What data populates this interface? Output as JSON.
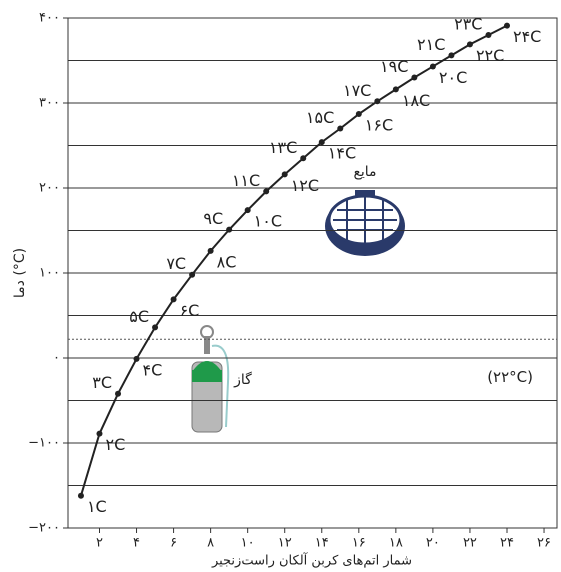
{
  "chart_data": {
    "type": "line",
    "y_label": "دما (°C)",
    "x_label": "شمار اتم‌های کربن آلکان راست‌زنجیر",
    "x": [
      1,
      2,
      3,
      4,
      5,
      6,
      7,
      8,
      9,
      10,
      11,
      12,
      13,
      14,
      15,
      16,
      17,
      18,
      19,
      20,
      21,
      22,
      23,
      24
    ],
    "series": [
      {
        "color": "#222222",
        "values": [
          -162,
          -89,
          -42,
          -1,
          36,
          69,
          98,
          126,
          151,
          174,
          196,
          216,
          235,
          254,
          270,
          287,
          302,
          316,
          330,
          343,
          356,
          369,
          380,
          391
        ],
        "point_labels": [
          "۱C",
          "۲C",
          "۳C",
          "۴C",
          "۵C",
          "۶C",
          "۷C",
          "۸C",
          "۹C",
          "۱۰C",
          "۱۱C",
          "۱۲C",
          "۱۳C",
          "۱۴C",
          "۱۵C",
          "۱۶C",
          "۱۷C",
          "۱۸C",
          "۱۹C",
          "۲۰C",
          "۲۱C",
          "۲۲C",
          "۲۳C",
          "۲۴C"
        ]
      }
    ],
    "xlim": [
      0.3,
      26.7
    ],
    "ylim": [
      -200,
      400
    ],
    "xticks": [
      {
        "value": 2,
        "label": "۲"
      },
      {
        "value": 4,
        "label": "۴"
      },
      {
        "value": 6,
        "label": "۶"
      },
      {
        "value": 8,
        "label": "۸"
      },
      {
        "value": 10,
        "label": "۱۰"
      },
      {
        "value": 12,
        "label": "۱۲"
      },
      {
        "value": 14,
        "label": "۱۴"
      },
      {
        "value": 16,
        "label": "۱۶"
      },
      {
        "value": 18,
        "label": "۱۸"
      },
      {
        "value": 20,
        "label": "۲۰"
      },
      {
        "value": 22,
        "label": "۲۲"
      },
      {
        "value": 24,
        "label": "۲۴"
      },
      {
        "value": 26,
        "label": "۲۶"
      }
    ],
    "yticks": [
      {
        "value": -200,
        "label": "−۲۰۰"
      },
      {
        "value": -100,
        "label": "−۱۰۰"
      },
      {
        "value": 0,
        "label": "۰"
      },
      {
        "value": 100,
        "label": "۱۰۰"
      },
      {
        "value": 200,
        "label": "۲۰۰"
      },
      {
        "value": 300,
        "label": "۳۰۰"
      },
      {
        "value": 400,
        "label": "۴۰۰"
      }
    ],
    "minor_yticks": [
      -150,
      -50,
      50,
      150,
      250,
      350
    ],
    "grid": true,
    "reference_line": {
      "value": 22,
      "label": "(۲۲°C)"
    },
    "annotations": {
      "liquid": "مایع",
      "gas": "گاز"
    }
  }
}
